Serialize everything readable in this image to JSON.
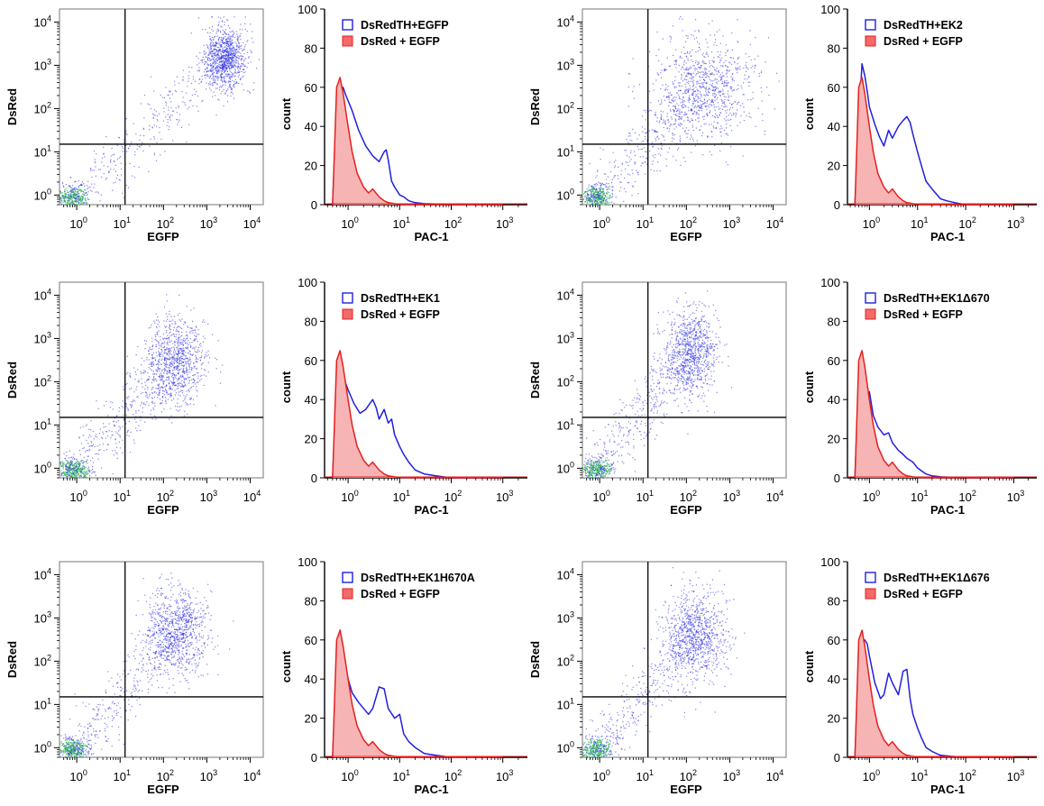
{
  "colors": {
    "scatter_low": "#2fbf4a",
    "scatter_dot": "#2a2ae6",
    "hist_blue": "#1f1fe0",
    "hist_red": "#e81e1e",
    "hist_red_fill": "#f7b4b4",
    "gate_line": "#000000",
    "pac1_label_dark": "#4a1c1c"
  },
  "chart_data": [
    {
      "type": "scatter",
      "panel": "r1c1",
      "xlabel": "EGFP",
      "ylabel": "DsRed",
      "xlog": true,
      "ylog": true,
      "xlim": [
        0.4,
        20000
      ],
      "ylim": [
        0.6,
        20000
      ],
      "gate": {
        "x": 13,
        "y": 15
      },
      "xticks": [
        1,
        10,
        100,
        1000,
        10000
      ],
      "yticks": [
        1,
        10,
        100,
        1000,
        10000
      ],
      "tick_base": "10",
      "tick_exps": [
        "0",
        "1",
        "2",
        "3",
        "4"
      ],
      "population": {
        "center": [
          2500,
          1500
        ],
        "spread_decades": [
          0.25,
          0.35
        ],
        "tail_to": [
          1,
          1
        ],
        "style": "diagonal"
      }
    },
    {
      "type": "histogram",
      "panel": "r1c2",
      "xlabel": "PAC-1",
      "ylabel": "count",
      "xlim": [
        0.35,
        3000
      ],
      "ylim": [
        0,
        100
      ],
      "yticks": [
        0,
        20,
        40,
        60,
        80,
        100
      ],
      "xticks": [
        1,
        10,
        100,
        1000
      ],
      "tick_base": "10",
      "tick_exps": [
        "0",
        "1",
        "2",
        "3"
      ],
      "series": [
        {
          "name": "DsRedTH+EGFP",
          "style": "outline",
          "color": "#1f1fe0",
          "x": [
            0.5,
            0.6,
            0.7,
            0.8,
            0.9,
            1.2,
            1.6,
            2.2,
            3,
            4,
            5,
            5.5,
            6,
            7,
            8,
            10,
            12,
            15,
            20,
            30,
            50,
            100,
            1000
          ],
          "y": [
            0,
            50,
            58,
            60,
            56,
            48,
            38,
            30,
            25,
            22,
            27,
            28,
            23,
            12,
            9,
            5,
            4,
            2,
            1,
            0.5,
            0.3,
            0,
            0
          ]
        },
        {
          "name": "DsRed + EGFP",
          "style": "filled",
          "color": "#e81e1e",
          "x": [
            0.5,
            0.6,
            0.7,
            0.8,
            1,
            1.2,
            1.5,
            2,
            2.5,
            3,
            4,
            5,
            6,
            8,
            10,
            20,
            100,
            1000
          ],
          "y": [
            0,
            60,
            65,
            57,
            40,
            27,
            16,
            9,
            6,
            8,
            4,
            2,
            1,
            0.5,
            0.2,
            0,
            0,
            0
          ]
        }
      ]
    },
    {
      "type": "scatter",
      "panel": "r1c3",
      "xlabel": "EGFP",
      "ylabel": "DsRed",
      "xlog": true,
      "ylog": true,
      "xlim": [
        0.4,
        20000
      ],
      "ylim": [
        0.6,
        20000
      ],
      "gate": {
        "x": 13,
        "y": 15
      },
      "xticks": [
        1,
        10,
        100,
        1000,
        10000
      ],
      "yticks": [
        1,
        10,
        100,
        1000,
        10000
      ],
      "tick_base": "10",
      "tick_exps": [
        "0",
        "1",
        "2",
        "3",
        "4"
      ],
      "population": {
        "center": [
          250,
          300
        ],
        "spread_decades": [
          0.6,
          0.6
        ],
        "tail_to": [
          1,
          1
        ],
        "style": "diagonal"
      }
    },
    {
      "type": "histogram",
      "panel": "r1c4",
      "xlabel": "PAC-1",
      "ylabel": "count",
      "xlim": [
        0.35,
        3000
      ],
      "ylim": [
        0,
        100
      ],
      "yticks": [
        0,
        20,
        40,
        60,
        80,
        100
      ],
      "xticks": [
        1,
        10,
        100,
        1000
      ],
      "tick_base": "10",
      "tick_exps": [
        "0",
        "1",
        "2",
        "3"
      ],
      "series": [
        {
          "name": "DsRedTH+EK2",
          "style": "outline",
          "color": "#1f1fe0",
          "x": [
            0.5,
            0.6,
            0.7,
            0.8,
            0.9,
            1,
            1.3,
            1.6,
            2,
            2.5,
            3,
            4,
            5,
            6,
            7,
            8,
            10,
            12,
            15,
            20,
            30,
            40,
            60,
            100,
            1000
          ],
          "y": [
            0,
            40,
            72,
            66,
            58,
            50,
            41,
            35,
            30,
            38,
            34,
            40,
            43,
            45,
            42,
            36,
            27,
            20,
            12,
            8,
            3,
            2,
            1,
            0,
            0
          ]
        },
        {
          "name": "DsRed + EGFP",
          "style": "filled",
          "color": "#e81e1e",
          "x": [
            0.5,
            0.6,
            0.7,
            0.8,
            1,
            1.2,
            1.5,
            2,
            2.5,
            3,
            4,
            5,
            6,
            8,
            10,
            20,
            100,
            1000
          ],
          "y": [
            0,
            60,
            65,
            57,
            40,
            27,
            16,
            9,
            6,
            8,
            4,
            2,
            1,
            0.5,
            0.2,
            0,
            0,
            0
          ]
        }
      ]
    },
    {
      "type": "scatter",
      "panel": "r2c1",
      "xlabel": "EGFP",
      "ylabel": "DsRed",
      "xlog": true,
      "ylog": true,
      "xlim": [
        0.4,
        20000
      ],
      "ylim": [
        0.6,
        20000
      ],
      "gate": {
        "x": 13,
        "y": 15
      },
      "xticks": [
        1,
        10,
        100,
        1000,
        10000
      ],
      "yticks": [
        1,
        10,
        100,
        1000,
        10000
      ],
      "tick_base": "10",
      "tick_exps": [
        "0",
        "1",
        "2",
        "3",
        "4"
      ],
      "population": {
        "center": [
          180,
          300
        ],
        "spread_decades": [
          0.35,
          0.5
        ],
        "tail_to": [
          1,
          1
        ],
        "style": "diagonal"
      }
    },
    {
      "type": "histogram",
      "panel": "r2c2",
      "xlabel": "PAC-1",
      "ylabel": "count",
      "xlim": [
        0.35,
        3000
      ],
      "ylim": [
        0,
        100
      ],
      "yticks": [
        0,
        20,
        40,
        60,
        80,
        100
      ],
      "xticks": [
        1,
        10,
        100,
        1000
      ],
      "tick_base": "10",
      "tick_exps": [
        "0",
        "1",
        "2",
        "3"
      ],
      "series": [
        {
          "name": "DsRedTH+EK1",
          "style": "outline",
          "color": "#1f1fe0",
          "x": [
            0.5,
            0.6,
            0.7,
            0.8,
            1,
            1.3,
            1.7,
            2.2,
            3,
            3.5,
            4,
            5,
            6,
            7,
            8,
            10,
            12,
            15,
            20,
            30,
            50,
            100,
            1000
          ],
          "y": [
            0,
            45,
            57,
            52,
            45,
            38,
            33,
            35,
            40,
            36,
            30,
            35,
            28,
            30,
            22,
            16,
            12,
            8,
            4,
            2,
            1,
            0,
            0
          ]
        },
        {
          "name": "DsRed + EGFP",
          "style": "filled",
          "color": "#e81e1e",
          "x": [
            0.5,
            0.6,
            0.7,
            0.8,
            1,
            1.2,
            1.5,
            2,
            2.5,
            3,
            4,
            5,
            6,
            8,
            10,
            20,
            100,
            1000
          ],
          "y": [
            0,
            60,
            65,
            57,
            40,
            27,
            16,
            9,
            6,
            8,
            4,
            2,
            1,
            0.5,
            0.2,
            0,
            0,
            0
          ]
        }
      ]
    },
    {
      "type": "scatter",
      "panel": "r2c3",
      "xlabel": "EGFP",
      "ylabel": "DsRed",
      "xlog": true,
      "ylog": true,
      "xlim": [
        0.4,
        20000
      ],
      "ylim": [
        0.6,
        20000
      ],
      "gate": {
        "x": 13,
        "y": 15
      },
      "xticks": [
        1,
        10,
        100,
        1000,
        10000
      ],
      "yticks": [
        1,
        10,
        100,
        1000,
        10000
      ],
      "tick_base": "10",
      "tick_exps": [
        "0",
        "1",
        "2",
        "3",
        "4"
      ],
      "population": {
        "center": [
          120,
          500
        ],
        "spread_decades": [
          0.3,
          0.5
        ],
        "tail_to": [
          1,
          1
        ],
        "style": "diagonal"
      }
    },
    {
      "type": "histogram",
      "panel": "r2c4",
      "xlabel": "PAC-1",
      "ylabel": "count",
      "xlim": [
        0.35,
        3000
      ],
      "ylim": [
        0,
        100
      ],
      "yticks": [
        0,
        20,
        40,
        60,
        80,
        100
      ],
      "xticks": [
        1,
        10,
        100,
        1000
      ],
      "tick_base": "10",
      "tick_exps": [
        "0",
        "1",
        "2",
        "3"
      ],
      "series": [
        {
          "name": "DsRedTH+EK1Δ670",
          "style": "outline",
          "color": "#1f1fe0",
          "x": [
            0.5,
            0.6,
            0.7,
            0.8,
            0.9,
            1,
            1.2,
            1.5,
            2,
            2.5,
            3,
            4,
            5,
            6,
            8,
            10,
            15,
            20,
            30,
            100,
            1000
          ],
          "y": [
            0,
            50,
            64,
            50,
            38,
            44,
            32,
            26,
            22,
            23,
            18,
            14,
            12,
            10,
            8,
            5,
            2,
            1,
            0.5,
            0,
            0
          ]
        },
        {
          "name": "DsRed + EGFP",
          "style": "filled",
          "color": "#e81e1e",
          "x": [
            0.5,
            0.6,
            0.7,
            0.8,
            1,
            1.2,
            1.5,
            2,
            2.5,
            3,
            4,
            5,
            6,
            8,
            10,
            20,
            100,
            1000
          ],
          "y": [
            0,
            60,
            65,
            57,
            40,
            27,
            16,
            9,
            6,
            8,
            4,
            2,
            1,
            0.5,
            0.2,
            0,
            0,
            0
          ]
        }
      ]
    },
    {
      "type": "scatter",
      "panel": "r3c1",
      "xlabel": "EGFP",
      "ylabel": "DsRed",
      "xlog": true,
      "ylog": true,
      "xlim": [
        0.4,
        20000
      ],
      "ylim": [
        0.6,
        20000
      ],
      "gate": {
        "x": 13,
        "y": 15
      },
      "xticks": [
        1,
        10,
        100,
        1000,
        10000
      ],
      "yticks": [
        1,
        10,
        100,
        1000,
        10000
      ],
      "tick_base": "10",
      "tick_exps": [
        "0",
        "1",
        "2",
        "3",
        "4"
      ],
      "population": {
        "center": [
          200,
          500
        ],
        "spread_decades": [
          0.35,
          0.5
        ],
        "tail_to": [
          1,
          1
        ],
        "style": "diagonal"
      }
    },
    {
      "type": "histogram",
      "panel": "r3c2",
      "xlabel": "PAC-1",
      "ylabel": "count",
      "xlim": [
        0.35,
        3000
      ],
      "ylim": [
        0,
        100
      ],
      "yticks": [
        0,
        20,
        40,
        60,
        80,
        100
      ],
      "xticks": [
        1,
        10,
        100,
        1000
      ],
      "tick_base": "10",
      "tick_exps": [
        "0",
        "1",
        "2",
        "3"
      ],
      "series": [
        {
          "name": "DsRedTH+EK1H670A",
          "style": "outline",
          "color": "#1f1fe0",
          "x": [
            0.5,
            0.6,
            0.7,
            0.8,
            1,
            1.2,
            1.6,
            2,
            2.5,
            3,
            4,
            5,
            6,
            8,
            10,
            12,
            15,
            20,
            30,
            50,
            100,
            1000
          ],
          "y": [
            0,
            45,
            65,
            55,
            40,
            33,
            28,
            25,
            22,
            25,
            36,
            35,
            25,
            20,
            22,
            12,
            8,
            5,
            2,
            1,
            0,
            0
          ]
        },
        {
          "name": "DsRed + EGFP",
          "style": "filled",
          "color": "#e81e1e",
          "x": [
            0.5,
            0.6,
            0.7,
            0.8,
            1,
            1.2,
            1.5,
            2,
            2.5,
            3,
            4,
            5,
            6,
            8,
            10,
            20,
            100,
            1000
          ],
          "y": [
            0,
            60,
            65,
            57,
            40,
            27,
            16,
            9,
            6,
            8,
            4,
            2,
            1,
            0.5,
            0.2,
            0,
            0,
            0
          ]
        }
      ]
    },
    {
      "type": "scatter",
      "panel": "r3c3",
      "xlabel": "EGFP",
      "ylabel": "DsRed",
      "xlog": true,
      "ylog": true,
      "xlim": [
        0.4,
        20000
      ],
      "ylim": [
        0.6,
        20000
      ],
      "gate": {
        "x": 13,
        "y": 15
      },
      "xticks": [
        1,
        10,
        100,
        1000,
        10000
      ],
      "yticks": [
        1,
        10,
        100,
        1000,
        10000
      ],
      "tick_base": "10",
      "tick_exps": [
        "0",
        "1",
        "2",
        "3",
        "4"
      ],
      "population": {
        "center": [
          150,
          400
        ],
        "spread_decades": [
          0.35,
          0.55
        ],
        "tail_to": [
          1,
          1
        ],
        "style": "diagonal"
      }
    },
    {
      "type": "histogram",
      "panel": "r3c4",
      "xlabel": "PAC-1",
      "ylabel": "count",
      "xlim": [
        0.35,
        3000
      ],
      "ylim": [
        0,
        100
      ],
      "yticks": [
        0,
        20,
        40,
        60,
        80,
        100
      ],
      "xticks": [
        1,
        10,
        100,
        1000
      ],
      "tick_base": "10",
      "tick_exps": [
        "0",
        "1",
        "2",
        "3"
      ],
      "series": [
        {
          "name": "DsRedTH+EK1Δ676",
          "style": "outline",
          "color": "#1f1fe0",
          "x": [
            0.5,
            0.6,
            0.7,
            0.8,
            0.9,
            1,
            1.3,
            1.7,
            2,
            2.5,
            3,
            4,
            5,
            6,
            7,
            8,
            10,
            12,
            15,
            20,
            30,
            50,
            100,
            1000
          ],
          "y": [
            0,
            50,
            59,
            60,
            58,
            52,
            38,
            30,
            32,
            43,
            38,
            32,
            44,
            45,
            30,
            22,
            15,
            10,
            5,
            3,
            1,
            0.5,
            0,
            0
          ]
        },
        {
          "name": "DsRed + EGFP",
          "style": "filled",
          "color": "#e81e1e",
          "x": [
            0.5,
            0.6,
            0.7,
            0.8,
            1,
            1.2,
            1.5,
            2,
            2.5,
            3,
            4,
            5,
            6,
            8,
            10,
            20,
            100,
            1000
          ],
          "y": [
            0,
            60,
            65,
            57,
            40,
            27,
            16,
            9,
            6,
            8,
            4,
            2,
            1,
            0.5,
            0.2,
            0,
            0,
            0
          ]
        }
      ]
    }
  ]
}
